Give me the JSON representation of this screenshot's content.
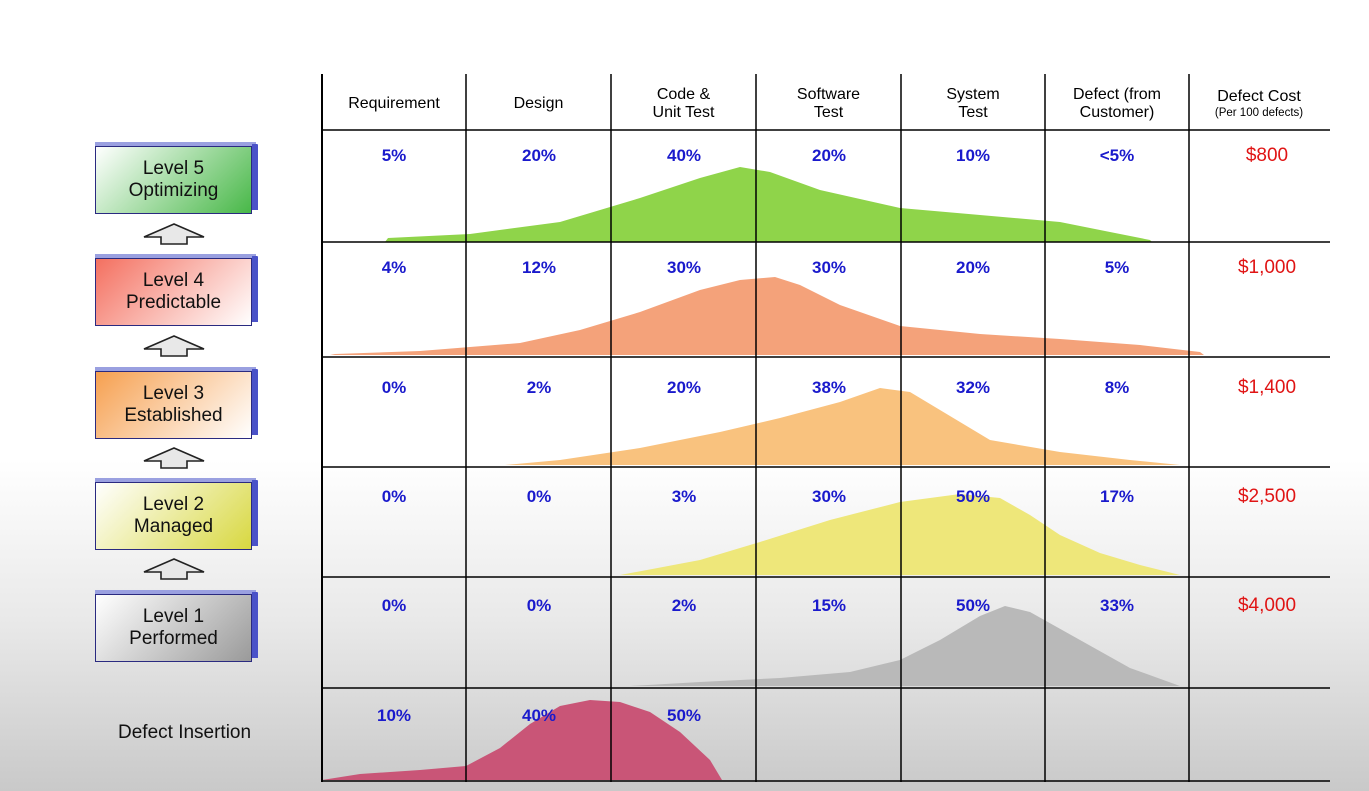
{
  "title_fragment": "",
  "columns": [
    {
      "line1": "Requirement",
      "line2": ""
    },
    {
      "line1": "Design",
      "line2": ""
    },
    {
      "line1": "Code &",
      "line2": "Unit Test"
    },
    {
      "line1": "Software",
      "line2": "Test"
    },
    {
      "line1": "System",
      "line2": "Test"
    },
    {
      "line1": "Defect (from",
      "line2": "Customer)"
    }
  ],
  "cost_header": {
    "line1": "Defect Cost",
    "line2": "(Per 100 defects)"
  },
  "levels": [
    {
      "name": "Level 5",
      "desc": "Optimizing",
      "values": [
        "5%",
        "20%",
        "40%",
        "20%",
        "10%",
        "<5%"
      ],
      "cost": "$800",
      "fill": "#8fd44a",
      "box_gradient": [
        "#ffffff",
        "#48b848"
      ]
    },
    {
      "name": "Level 4",
      "desc": "Predictable",
      "values": [
        "4%",
        "12%",
        "30%",
        "30%",
        "20%",
        "5%"
      ],
      "cost": "$1,000",
      "fill": "#f4a27a",
      "box_gradient": [
        "#f47060",
        "#ffffff"
      ]
    },
    {
      "name": "Level 3",
      "desc": "Established",
      "values": [
        "0%",
        "2%",
        "20%",
        "38%",
        "32%",
        "8%"
      ],
      "cost": "$1,400",
      "fill": "#f9c27e",
      "box_gradient": [
        "#f6a050",
        "#ffffff"
      ]
    },
    {
      "name": "Level 2",
      "desc": "Managed",
      "values": [
        "0%",
        "0%",
        "3%",
        "30%",
        "50%",
        "17%"
      ],
      "cost": "$2,500",
      "fill": "#eee77a",
      "box_gradient": [
        "#ffffff",
        "#d8d840"
      ]
    },
    {
      "name": "Level 1",
      "desc": "Performed",
      "values": [
        "0%",
        "0%",
        "2%",
        "15%",
        "50%",
        "33%"
      ],
      "cost": "$4,000",
      "fill": "#b9b9b9",
      "box_gradient": [
        "#ffffff",
        "#9a9a9a"
      ]
    }
  ],
  "defect_insertion": {
    "label": "Defect Insertion",
    "values": [
      "10%",
      "40%",
      "50%"
    ],
    "fill": "#c95577"
  },
  "colors": {
    "percent_text": "#1a1acc",
    "cost_text": "#e01414",
    "grid": "#000000",
    "box_border": "#2a2a80",
    "arrow_fill": "#e8e8e8"
  }
}
